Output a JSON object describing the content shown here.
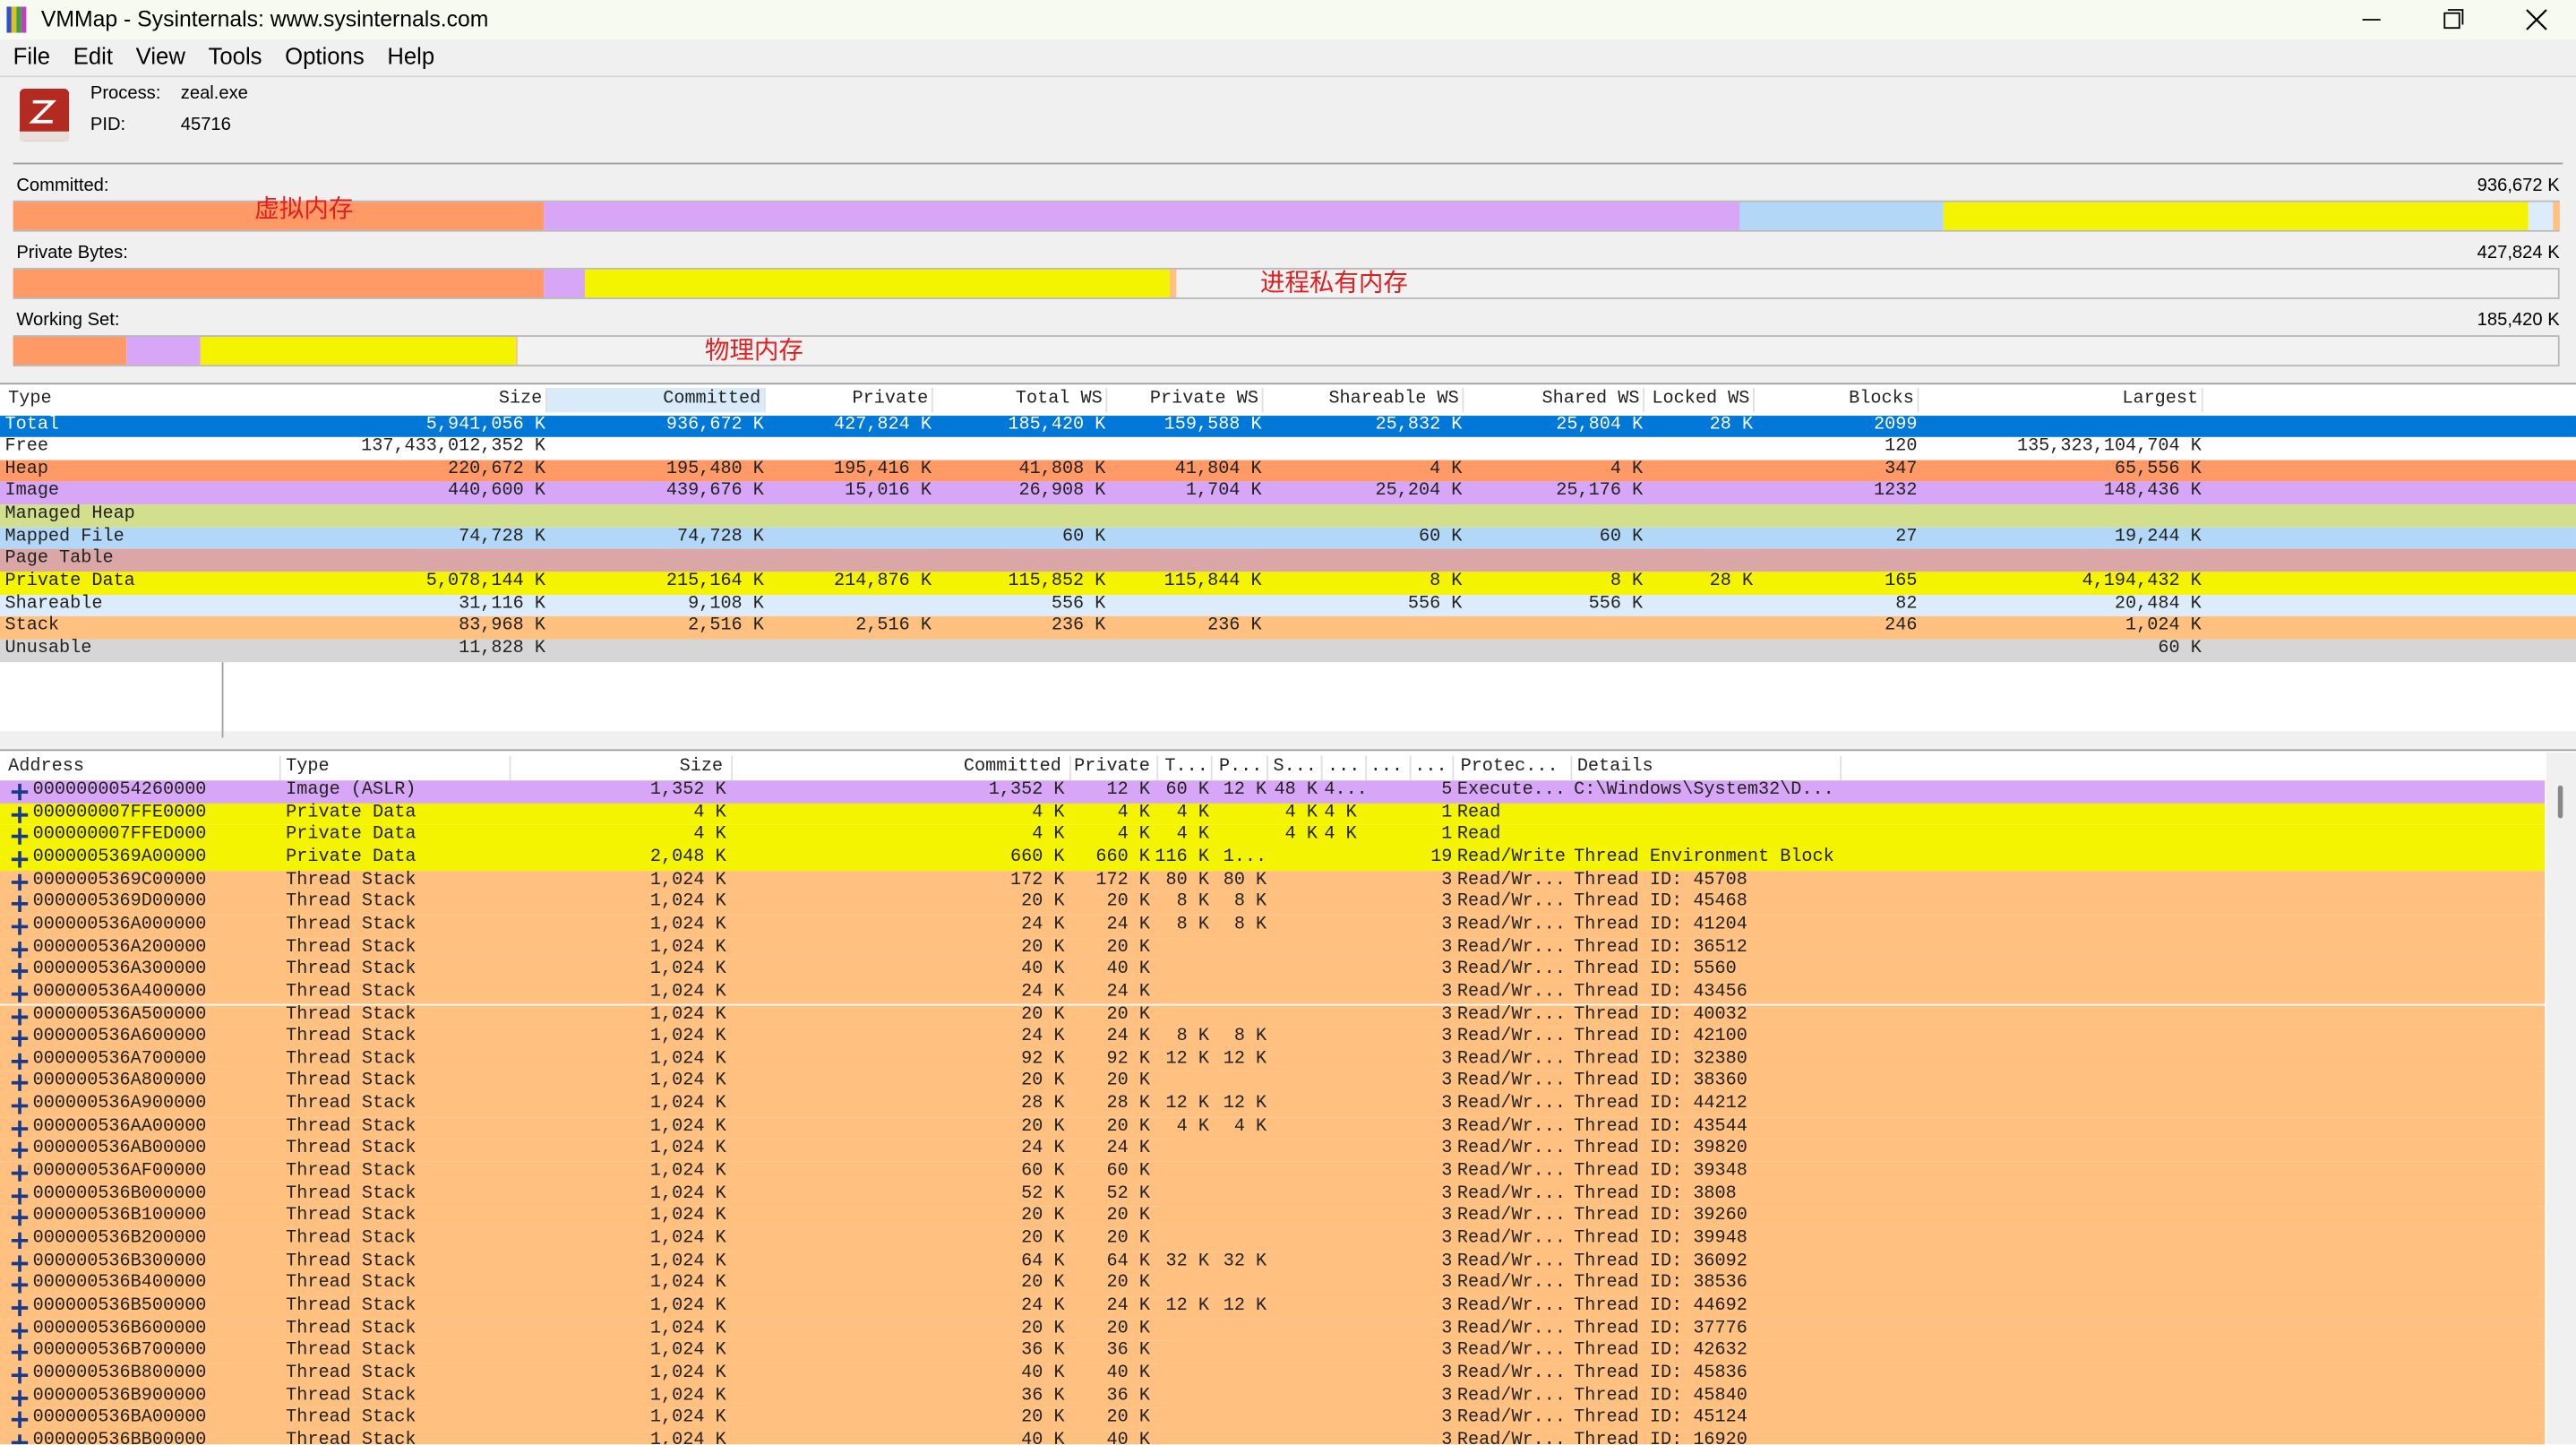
{
  "window": {
    "title": "VMMap - Sysinternals: www.sysinternals.com",
    "menu": [
      "File",
      "Edit",
      "View",
      "Tools",
      "Options",
      "Help"
    ]
  },
  "process": {
    "process_label": "Process:",
    "process": "zeal.exe",
    "pid_label": "PID:",
    "pid": "45716"
  },
  "bars": [
    {
      "label": "Committed:",
      "total_label": "936,672 K",
      "total": 936672,
      "annotation": "虚拟内存",
      "segments": [
        {
          "color": "#ff9966",
          "value": 195480
        },
        {
          "color": "#d8a6f6",
          "value": 439676
        },
        {
          "color": "#b3d8f7",
          "value": 74728
        },
        {
          "color": "#f4f400",
          "value": 215164
        },
        {
          "color": "#ddecfa",
          "value": 9108
        },
        {
          "color": "#ffc080",
          "value": 2516
        }
      ]
    },
    {
      "label": "Private Bytes:",
      "total_label": "427,824 K",
      "total": 427824,
      "annotation": "进程私有内存",
      "segments": [
        {
          "color": "#ff9966",
          "value": 195416
        },
        {
          "color": "#d8a6f6",
          "value": 15016
        },
        {
          "color": "#f4f400",
          "value": 214876
        },
        {
          "color": "#ffc080",
          "value": 2516
        }
      ]
    },
    {
      "label": "Working Set:",
      "total_label": "185,420 K",
      "total": 185420,
      "annotation": "物理内存",
      "segments": [
        {
          "color": "#ff9966",
          "value": 41808
        },
        {
          "color": "#d8a6f6",
          "value": 26908
        },
        {
          "color": "#b3d8f7",
          "value": 60
        },
        {
          "color": "#f4f400",
          "value": 115852
        },
        {
          "color": "#ddecfa",
          "value": 556
        },
        {
          "color": "#ffc080",
          "value": 236
        }
      ]
    }
  ],
  "top_table": {
    "columns": [
      "Type",
      "Size",
      "Committed",
      "Private",
      "Total WS",
      "Private WS",
      "Shareable WS",
      "Shared WS",
      "Locked WS",
      "Blocks",
      "Largest"
    ],
    "rows": [
      {
        "color": "#0078d7",
        "selected": true,
        "cells": [
          "Total",
          "5,941,056 K",
          "936,672 K",
          "427,824 K",
          "185,420 K",
          "159,588 K",
          "25,832 K",
          "25,804 K",
          "28 K",
          "2099",
          null
        ]
      },
      {
        "color": "#ffffff",
        "cells": [
          "Free",
          "137,433,012,352 K",
          null,
          null,
          null,
          null,
          null,
          null,
          null,
          "120",
          "135,323,104,704 K"
        ]
      },
      {
        "color": "#ff9966",
        "cells": [
          "Heap",
          "220,672 K",
          "195,480 K",
          "195,416 K",
          "41,808 K",
          "41,804 K",
          "4 K",
          "4 K",
          null,
          "347",
          "65,556 K"
        ]
      },
      {
        "color": "#d8a6f6",
        "cells": [
          "Image",
          "440,600 K",
          "439,676 K",
          "15,016 K",
          "26,908 K",
          "1,704 K",
          "25,204 K",
          "25,176 K",
          null,
          "1232",
          "148,436 K"
        ]
      },
      {
        "color": "#d2df8c",
        "cells": [
          "Managed Heap",
          null,
          null,
          null,
          null,
          null,
          null,
          null,
          null,
          null,
          null
        ]
      },
      {
        "color": "#b3d8f7",
        "cells": [
          "Mapped File",
          "74,728 K",
          "74,728 K",
          null,
          "60 K",
          null,
          "60 K",
          "60 K",
          null,
          "27",
          "19,244 K"
        ]
      },
      {
        "color": "#dba6a6",
        "cells": [
          "Page Table",
          null,
          null,
          null,
          null,
          null,
          null,
          null,
          null,
          null,
          null
        ]
      },
      {
        "color": "#f4f400",
        "cells": [
          "Private Data",
          "5,078,144 K",
          "215,164 K",
          "214,876 K",
          "115,852 K",
          "115,844 K",
          "8 K",
          "8 K",
          "28 K",
          "165",
          "4,194,432 K"
        ]
      },
      {
        "color": "#ddecfa",
        "cells": [
          "Shareable",
          "31,116 K",
          "9,108 K",
          null,
          "556 K",
          null,
          "556 K",
          "556 K",
          null,
          "82",
          "20,484 K"
        ]
      },
      {
        "color": "#ffc080",
        "cells": [
          "Stack",
          "83,968 K",
          "2,516 K",
          "2,516 K",
          "236 K",
          "236 K",
          null,
          null,
          null,
          "246",
          "1,024 K"
        ]
      },
      {
        "color": "#d6d6d6",
        "cells": [
          "Unusable",
          "11,828 K",
          null,
          null,
          null,
          null,
          null,
          null,
          null,
          null,
          "60 K"
        ]
      }
    ]
  },
  "bottom_table": {
    "columns": [
      "Address",
      "Type",
      "Size",
      "Committed",
      "Private",
      "T...",
      "P...",
      "S...",
      "...",
      "...",
      "...",
      null,
      "Protec...",
      "Details"
    ],
    "rows": [
      {
        "color": "#d8a6f6",
        "cells": [
          "0000000054260000",
          "Image (ASLR)",
          "1,352 K",
          "1,352 K",
          "12 K",
          "60 K",
          "12 K",
          "48 K",
          "4...",
          null,
          null,
          "5",
          "Execute...",
          "C:\\Windows\\System32\\D..."
        ]
      },
      {
        "color": "#f4f400",
        "cells": [
          "000000007FFE0000",
          "Private Data",
          "4 K",
          "4 K",
          "4 K",
          "4 K",
          null,
          "4 K",
          "4 K",
          null,
          null,
          "1",
          "Read",
          null
        ]
      },
      {
        "color": "#f4f400",
        "cells": [
          "000000007FFED000",
          "Private Data",
          "4 K",
          "4 K",
          "4 K",
          "4 K",
          null,
          "4 K",
          "4 K",
          null,
          null,
          "1",
          "Read",
          null
        ]
      },
      {
        "color": "#f4f400",
        "cells": [
          "0000005369A00000",
          "Private Data",
          "2,048 K",
          "660 K",
          "660 K",
          "116 K",
          "1...",
          null,
          null,
          null,
          null,
          "19",
          "Read/Write",
          "Thread Environment Block"
        ]
      },
      {
        "color": "#ffc080",
        "cells": [
          "0000005369C00000",
          "Thread Stack",
          "1,024 K",
          "172 K",
          "172 K",
          "80 K",
          "80 K",
          null,
          null,
          null,
          null,
          "3",
          "Read/Wr...",
          "Thread ID: 45708"
        ]
      },
      {
        "color": "#ffc080",
        "cells": [
          "0000005369D00000",
          "Thread Stack",
          "1,024 K",
          "20 K",
          "20 K",
          "8 K",
          "8 K",
          null,
          null,
          null,
          null,
          "3",
          "Read/Wr...",
          "Thread ID: 45468"
        ]
      },
      {
        "color": "#ffc080",
        "cells": [
          "000000536A000000",
          "Thread Stack",
          "1,024 K",
          "24 K",
          "24 K",
          "8 K",
          "8 K",
          null,
          null,
          null,
          null,
          "3",
          "Read/Wr...",
          "Thread ID: 41204"
        ]
      },
      {
        "color": "#ffc080",
        "cells": [
          "000000536A200000",
          "Thread Stack",
          "1,024 K",
          "20 K",
          "20 K",
          null,
          null,
          null,
          null,
          null,
          null,
          "3",
          "Read/Wr...",
          "Thread ID: 36512"
        ]
      },
      {
        "color": "#ffc080",
        "cells": [
          "000000536A300000",
          "Thread Stack",
          "1,024 K",
          "40 K",
          "40 K",
          null,
          null,
          null,
          null,
          null,
          null,
          "3",
          "Read/Wr...",
          "Thread ID: 5560"
        ]
      },
      {
        "color": "#ffc080",
        "cells": [
          "000000536A400000",
          "Thread Stack",
          "1,024 K",
          "24 K",
          "24 K",
          null,
          null,
          null,
          null,
          null,
          null,
          "3",
          "Read/Wr...",
          "Thread ID: 43456"
        ]
      },
      {
        "color": "#ffc080",
        "cells": [
          "000000536A500000",
          "Thread Stack",
          "1,024 K",
          "20 K",
          "20 K",
          null,
          null,
          null,
          null,
          null,
          null,
          "3",
          "Read/Wr...",
          "Thread ID: 40032"
        ]
      },
      {
        "color": "#ffc080",
        "cells": [
          "000000536A600000",
          "Thread Stack",
          "1,024 K",
          "24 K",
          "24 K",
          "8 K",
          "8 K",
          null,
          null,
          null,
          null,
          "3",
          "Read/Wr...",
          "Thread ID: 42100"
        ]
      },
      {
        "color": "#ffc080",
        "cells": [
          "000000536A700000",
          "Thread Stack",
          "1,024 K",
          "92 K",
          "92 K",
          "12 K",
          "12 K",
          null,
          null,
          null,
          null,
          "3",
          "Read/Wr...",
          "Thread ID: 32380"
        ]
      },
      {
        "color": "#ffc080",
        "cells": [
          "000000536A800000",
          "Thread Stack",
          "1,024 K",
          "20 K",
          "20 K",
          null,
          null,
          null,
          null,
          null,
          null,
          "3",
          "Read/Wr...",
          "Thread ID: 38360"
        ]
      },
      {
        "color": "#ffc080",
        "cells": [
          "000000536A900000",
          "Thread Stack",
          "1,024 K",
          "28 K",
          "28 K",
          "12 K",
          "12 K",
          null,
          null,
          null,
          null,
          "3",
          "Read/Wr...",
          "Thread ID: 44212"
        ]
      },
      {
        "color": "#ffc080",
        "cells": [
          "000000536AA00000",
          "Thread Stack",
          "1,024 K",
          "20 K",
          "20 K",
          "4 K",
          "4 K",
          null,
          null,
          null,
          null,
          "3",
          "Read/Wr...",
          "Thread ID: 43544"
        ]
      },
      {
        "color": "#ffc080",
        "cells": [
          "000000536AB00000",
          "Thread Stack",
          "1,024 K",
          "24 K",
          "24 K",
          null,
          null,
          null,
          null,
          null,
          null,
          "3",
          "Read/Wr...",
          "Thread ID: 39820"
        ]
      },
      {
        "color": "#ffc080",
        "cells": [
          "000000536AF00000",
          "Thread Stack",
          "1,024 K",
          "60 K",
          "60 K",
          null,
          null,
          null,
          null,
          null,
          null,
          "3",
          "Read/Wr...",
          "Thread ID: 39348"
        ]
      },
      {
        "color": "#ffc080",
        "cells": [
          "000000536B000000",
          "Thread Stack",
          "1,024 K",
          "52 K",
          "52 K",
          null,
          null,
          null,
          null,
          null,
          null,
          "3",
          "Read/Wr...",
          "Thread ID: 3808"
        ]
      },
      {
        "color": "#ffc080",
        "cells": [
          "000000536B100000",
          "Thread Stack",
          "1,024 K",
          "20 K",
          "20 K",
          null,
          null,
          null,
          null,
          null,
          null,
          "3",
          "Read/Wr...",
          "Thread ID: 39260"
        ]
      },
      {
        "color": "#ffc080",
        "cells": [
          "000000536B200000",
          "Thread Stack",
          "1,024 K",
          "20 K",
          "20 K",
          null,
          null,
          null,
          null,
          null,
          null,
          "3",
          "Read/Wr...",
          "Thread ID: 39948"
        ]
      },
      {
        "color": "#ffc080",
        "cells": [
          "000000536B300000",
          "Thread Stack",
          "1,024 K",
          "64 K",
          "64 K",
          "32 K",
          "32 K",
          null,
          null,
          null,
          null,
          "3",
          "Read/Wr...",
          "Thread ID: 36092"
        ]
      },
      {
        "color": "#ffc080",
        "cells": [
          "000000536B400000",
          "Thread Stack",
          "1,024 K",
          "20 K",
          "20 K",
          null,
          null,
          null,
          null,
          null,
          null,
          "3",
          "Read/Wr...",
          "Thread ID: 38536"
        ]
      },
      {
        "color": "#ffc080",
        "cells": [
          "000000536B500000",
          "Thread Stack",
          "1,024 K",
          "24 K",
          "24 K",
          "12 K",
          "12 K",
          null,
          null,
          null,
          null,
          "3",
          "Read/Wr...",
          "Thread ID: 44692"
        ]
      },
      {
        "color": "#ffc080",
        "cells": [
          "000000536B600000",
          "Thread Stack",
          "1,024 K",
          "20 K",
          "20 K",
          null,
          null,
          null,
          null,
          null,
          null,
          "3",
          "Read/Wr...",
          "Thread ID: 37776"
        ]
      },
      {
        "color": "#ffc080",
        "cells": [
          "000000536B700000",
          "Thread Stack",
          "1,024 K",
          "36 K",
          "36 K",
          null,
          null,
          null,
          null,
          null,
          null,
          "3",
          "Read/Wr...",
          "Thread ID: 42632"
        ]
      },
      {
        "color": "#ffc080",
        "cells": [
          "000000536B800000",
          "Thread Stack",
          "1,024 K",
          "40 K",
          "40 K",
          null,
          null,
          null,
          null,
          null,
          null,
          "3",
          "Read/Wr...",
          "Thread ID: 45836"
        ]
      },
      {
        "color": "#ffc080",
        "cells": [
          "000000536B900000",
          "Thread Stack",
          "1,024 K",
          "36 K",
          "36 K",
          null,
          null,
          null,
          null,
          null,
          null,
          "3",
          "Read/Wr...",
          "Thread ID: 45840"
        ]
      },
      {
        "color": "#ffc080",
        "cells": [
          "000000536BA00000",
          "Thread Stack",
          "1,024 K",
          "20 K",
          "20 K",
          null,
          null,
          null,
          null,
          null,
          null,
          "3",
          "Read/Wr...",
          "Thread ID: 45124"
        ]
      },
      {
        "color": "#ffc080",
        "cells": [
          "000000536BB00000",
          "Thread Stack",
          "1,024 K",
          "40 K",
          "40 K",
          null,
          null,
          null,
          null,
          null,
          null,
          "3",
          "Read/Wr...",
          "Thread ID: 16920"
        ]
      }
    ]
  }
}
